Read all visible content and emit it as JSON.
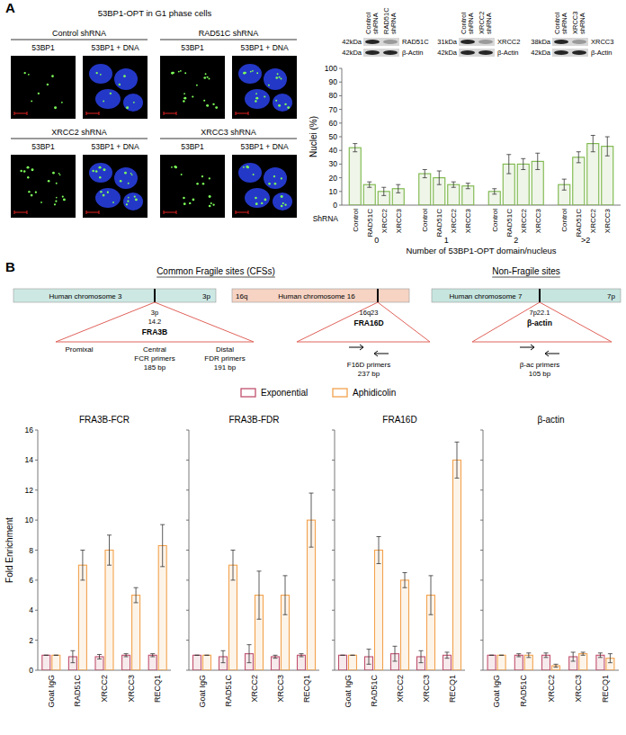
{
  "chart_data": [
    {
      "type": "bar",
      "ylabel": "Nuclei (%)",
      "xlabel": "Number of 53BP1-OPT domain/nucleus",
      "series_label": "ShRNA",
      "categories": [
        "0",
        "1",
        "2",
        ">2"
      ],
      "series": [
        {
          "name": "Control",
          "color": "#7ab648",
          "values": [
            42,
            23,
            10,
            15
          ],
          "errors": [
            3,
            3,
            2,
            4
          ]
        },
        {
          "name": "RAD51C",
          "color": "#7ab648",
          "values": [
            15,
            20,
            30,
            35
          ],
          "errors": [
            2,
            5,
            7,
            4
          ]
        },
        {
          "name": "XRCC2",
          "color": "#7ab648",
          "values": [
            10,
            15,
            30,
            45
          ],
          "errors": [
            3,
            2,
            4,
            6
          ]
        },
        {
          "name": "XRCC3",
          "color": "#7ab648",
          "values": [
            12,
            14,
            32,
            43
          ],
          "errors": [
            3,
            2,
            6,
            7
          ]
        }
      ],
      "ylim": [
        0,
        100
      ],
      "yticks": [
        0,
        10,
        20,
        30,
        40,
        50,
        60,
        70,
        80,
        90,
        100
      ],
      "grid": false
    },
    {
      "type": "bar",
      "title": "FRA3B-FCR",
      "ylabel": "Fold Enrichment",
      "legend": "top",
      "categories": [
        "Goat IgG",
        "RAD51C",
        "XRCC2",
        "XRCC3",
        "RECQ1"
      ],
      "series": [
        {
          "name": "Exponential",
          "color": "#c0506e",
          "values": [
            1,
            0.9,
            0.9,
            1.0,
            1.0
          ],
          "errors": [
            0,
            0.4,
            0.15,
            0.1,
            0.1
          ]
        },
        {
          "name": "Aphidicolin",
          "color": "#f2a24e",
          "values": [
            1,
            7,
            8,
            5,
            8.3
          ],
          "errors": [
            0,
            1,
            1,
            0.5,
            1.4
          ]
        }
      ],
      "ylim": [
        0,
        16
      ],
      "yticks": [
        0,
        2,
        4,
        6,
        8,
        10,
        12,
        14,
        16
      ],
      "grid": false
    },
    {
      "type": "bar",
      "title": "FRA3B-FDR",
      "tick_labels": "x",
      "categories": [
        "Goat IgG",
        "RAD51C",
        "XRCC2",
        "XRCC3",
        "RECQ1"
      ],
      "series": [
        {
          "color": "#c0506e",
          "values": [
            1,
            0.9,
            1.1,
            0.9,
            1.0
          ],
          "errors": [
            0,
            0.4,
            0.6,
            0.1,
            0.1
          ]
        },
        {
          "color": "#f2a24e",
          "values": [
            1,
            7,
            5,
            5,
            10
          ],
          "errors": [
            0,
            1,
            1.6,
            1.3,
            1.8
          ]
        }
      ],
      "ylim": [
        0,
        16
      ],
      "yticks": [
        0,
        2,
        4,
        6,
        8,
        10,
        12,
        14,
        16
      ],
      "grid": false
    },
    {
      "type": "bar",
      "title": "FRA16D",
      "tick_labels": "x",
      "categories": [
        "Goat IgG",
        "RAD51C",
        "XRCC2",
        "XRCC3",
        "RECQ1"
      ],
      "series": [
        {
          "color": "#c0506e",
          "values": [
            1,
            0.9,
            1.1,
            0.9,
            1.0
          ],
          "errors": [
            0,
            0.5,
            0.5,
            0.4,
            0.2
          ]
        },
        {
          "color": "#f2a24e",
          "values": [
            1,
            8,
            6,
            5,
            14
          ],
          "errors": [
            0,
            0.9,
            0.5,
            1.3,
            1.2
          ]
        }
      ],
      "ylim": [
        0,
        16
      ],
      "yticks": [
        0,
        2,
        4,
        6,
        8,
        10,
        12,
        14,
        16
      ],
      "grid": false
    },
    {
      "type": "bar",
      "title": "β-actin",
      "tick_labels": "x",
      "categories": [
        "Goat IgG",
        "RAD51C",
        "XRCC2",
        "XRCC3",
        "RECQ1"
      ],
      "series": [
        {
          "color": "#c0506e",
          "values": [
            1,
            1.0,
            1.0,
            0.9,
            1.0
          ],
          "errors": [
            0,
            0.1,
            0.15,
            0.3,
            0.15
          ]
        },
        {
          "color": "#f2a24e",
          "values": [
            1,
            1.0,
            0.3,
            1.1,
            0.8
          ],
          "errors": [
            0,
            0.15,
            0.1,
            0.1,
            0.3
          ]
        }
      ],
      "ylim": [
        0,
        16
      ],
      "yticks": [
        0,
        2,
        4,
        6,
        8,
        10,
        12,
        14,
        16
      ],
      "grid": false
    }
  ],
  "figure": {
    "panels": [
      "A",
      "B"
    ],
    "images": {
      "title": "53BP1-OPT in G1 phase cells",
      "groups": [
        {
          "label": "Control shRNA",
          "channels": [
            "53BP1",
            "53BP1 + DNA"
          ]
        },
        {
          "label": "RAD51C shRNA",
          "channels": [
            "53BP1",
            "53BP1 + DNA"
          ]
        },
        {
          "label": "XRCC2 shRNA",
          "channels": [
            "53BP1",
            "53BP1 + DNA"
          ]
        },
        {
          "label": "XRCC3 shRNA",
          "channels": [
            "53BP1",
            "53BP1 + DNA"
          ]
        }
      ]
    },
    "blots": [
      {
        "lanes": [
          "Control shRNA",
          "RAD51C shRNA"
        ],
        "rows": [
          {
            "name": "RAD51C",
            "kda": "42kDa"
          },
          {
            "name": "β-Actin",
            "kda": "42kDa"
          }
        ]
      },
      {
        "lanes": [
          "Control shRNA",
          "XRCC2 shRNA"
        ],
        "rows": [
          {
            "name": "XRCC2",
            "kda": "31kDa"
          },
          {
            "name": "β-Actin",
            "kda": "42kDa"
          }
        ]
      },
      {
        "lanes": [
          "Control shRNA",
          "XRCC3 shRNA"
        ],
        "rows": [
          {
            "name": "XRCC3",
            "kda": "38kDa"
          },
          {
            "name": "β-Actin",
            "kda": "42kDa"
          }
        ]
      }
    ],
    "loci": {
      "headings": [
        "Common Fragile sites (CFSs)",
        "Non-Fragile sites"
      ],
      "chromosomes": [
        {
          "label": "Human chromosome 3",
          "arm": "3p",
          "band": [
            "3p",
            "14.2"
          ],
          "site": "FRA3B",
          "regions": [
            [
              "Promixal"
            ],
            [
              "Central",
              "FCR primers",
              "185 bp"
            ],
            [
              "Distal",
              "FDR primers",
              "191 bp"
            ]
          ]
        },
        {
          "label": "Human chromosome 16",
          "arm": "16q",
          "band": [
            "16q23"
          ],
          "site": "FRA16D",
          "regions": [
            [
              "F16D primers",
              "237 bp"
            ]
          ]
        },
        {
          "label": "Human chromosome 7",
          "arm": "7p",
          "band": [
            "7p22.1"
          ],
          "site": "β-actin",
          "regions": [
            [
              "β-ac primers",
              "105 bp"
            ]
          ]
        }
      ]
    }
  }
}
